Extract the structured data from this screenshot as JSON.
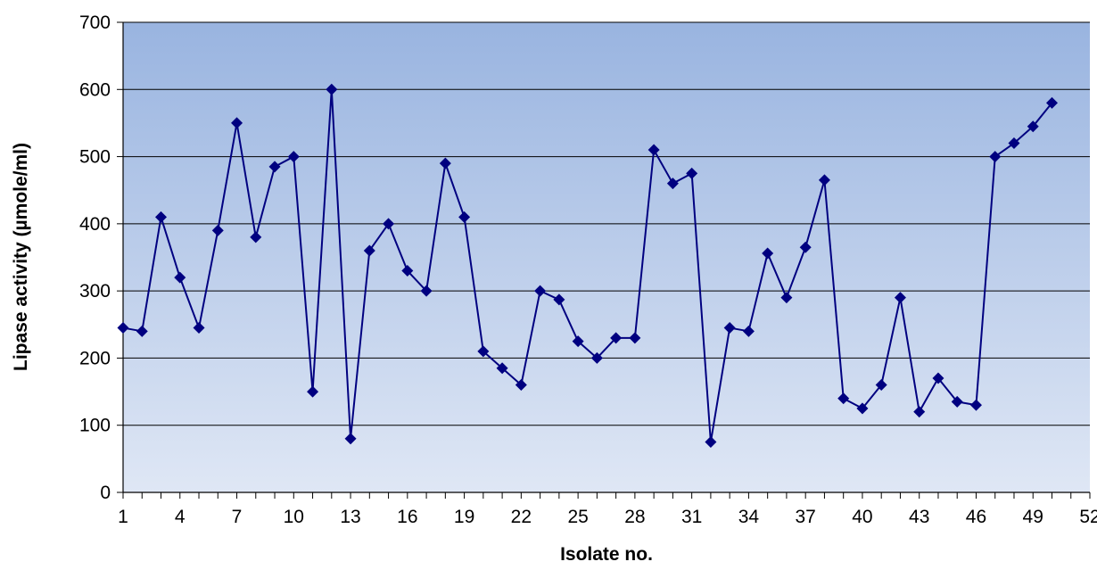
{
  "chart_data": {
    "type": "line",
    "title": "",
    "xlabel": "Isolate no.",
    "ylabel": "Lipase activity (µmole/ml)",
    "xlim": [
      1,
      52
    ],
    "ylim": [
      0,
      700
    ],
    "x_ticks": [
      1,
      4,
      7,
      10,
      13,
      16,
      19,
      22,
      25,
      28,
      31,
      34,
      37,
      40,
      43,
      46,
      49,
      52
    ],
    "y_ticks": [
      0,
      100,
      200,
      300,
      400,
      500,
      600,
      700
    ],
    "grid": {
      "horizontal": true,
      "vertical": false
    },
    "legend": "none",
    "colors": {
      "series": "#000080",
      "plot_bg_top": "#99b4e0",
      "plot_bg_bottom": "#dfe7f5",
      "gridline": "#000000"
    },
    "series": [
      {
        "marker": "diamond",
        "x": [
          1,
          2,
          3,
          4,
          5,
          6,
          7,
          8,
          9,
          10,
          11,
          12,
          13,
          14,
          15,
          16,
          17,
          18,
          19,
          20,
          21,
          22,
          23,
          24,
          25,
          26,
          27,
          28,
          29,
          30,
          31,
          32,
          33,
          34,
          35,
          36,
          37,
          38,
          39,
          40,
          41,
          42,
          43,
          44,
          45,
          46,
          47,
          48,
          49,
          50
        ],
        "values": [
          245,
          240,
          410,
          320,
          245,
          390,
          550,
          380,
          485,
          500,
          150,
          600,
          80,
          360,
          400,
          330,
          300,
          490,
          410,
          210,
          185,
          160,
          300,
          287,
          225,
          200,
          230,
          230,
          510,
          460,
          475,
          75,
          245,
          240,
          356,
          290,
          365,
          465,
          140,
          125,
          160,
          290,
          120,
          170,
          135,
          130,
          500,
          520,
          545,
          580
        ]
      }
    ]
  }
}
